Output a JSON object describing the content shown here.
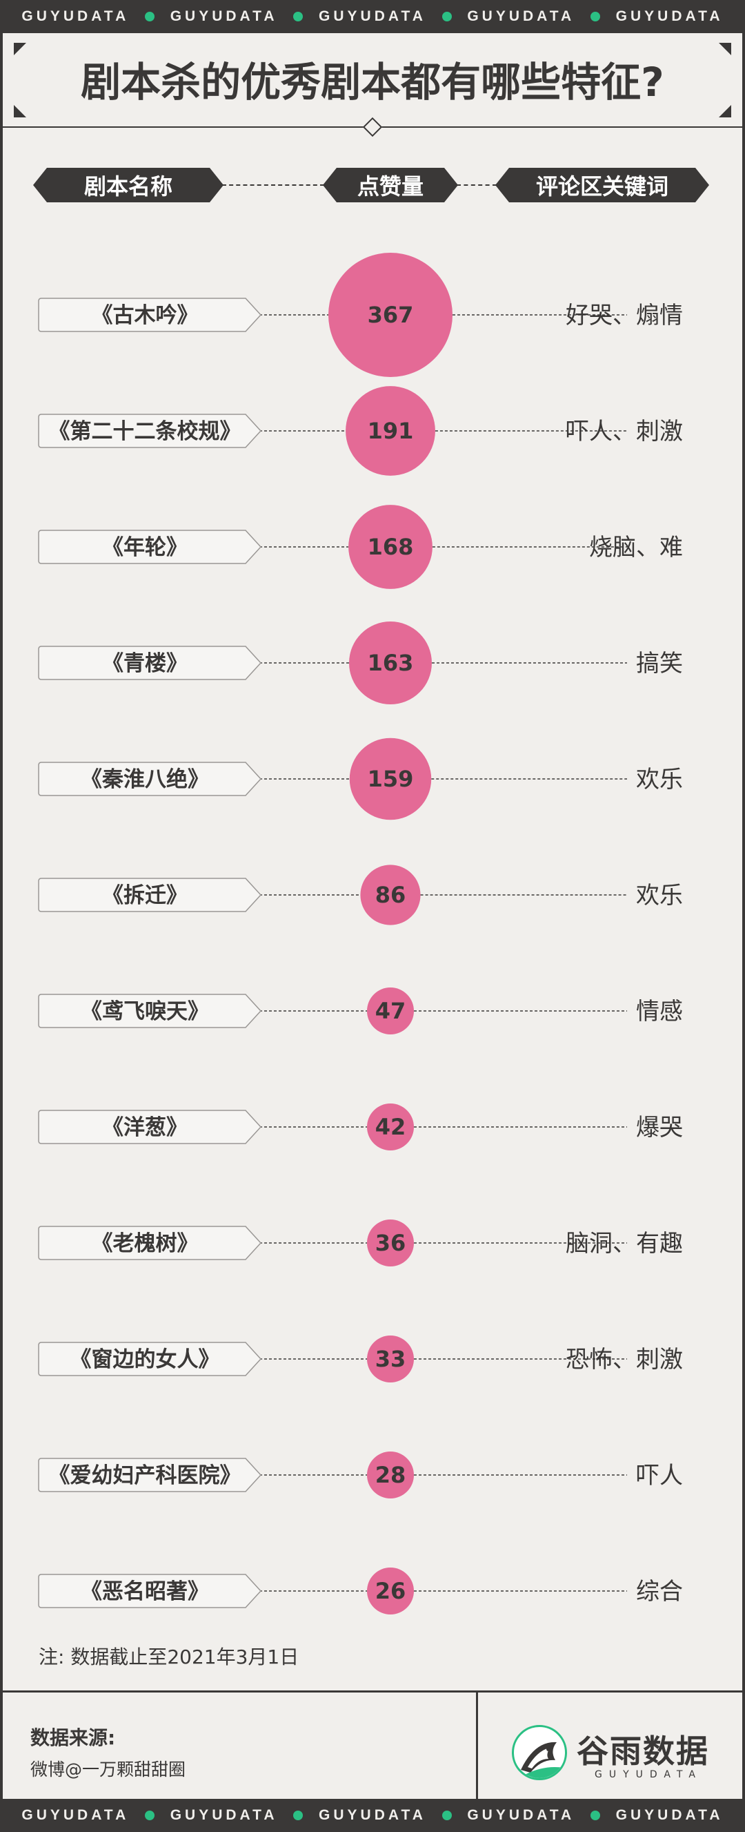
{
  "banner": {
    "word": "GUYUDATA",
    "repeat": 5
  },
  "title": "剧本杀的优秀剧本都有哪些特征?",
  "headers": {
    "name": "剧本名称",
    "likes": "点赞量",
    "keywords": "评论区关键词"
  },
  "chart_data": {
    "type": "bubble",
    "rows": [
      {
        "name": "《古木吟》",
        "likes": 367,
        "keywords": "好哭、煽情"
      },
      {
        "name": "《第二十二条校规》",
        "likes": 191,
        "keywords": "吓人、刺激"
      },
      {
        "name": "《年轮》",
        "likes": 168,
        "keywords": "烧脑、难"
      },
      {
        "name": "《青楼》",
        "likes": 163,
        "keywords": "搞笑"
      },
      {
        "name": "《秦淮八绝》",
        "likes": 159,
        "keywords": "欢乐"
      },
      {
        "name": "《拆迁》",
        "likes": 86,
        "keywords": "欢乐"
      },
      {
        "name": "《鸢飞唳天》",
        "likes": 47,
        "keywords": "情感"
      },
      {
        "name": "《洋葱》",
        "likes": 42,
        "keywords": "爆哭"
      },
      {
        "name": "《老槐树》",
        "likes": 36,
        "keywords": "脑洞、有趣"
      },
      {
        "name": "《窗边的女人》",
        "likes": 33,
        "keywords": "恐怖、刺激"
      },
      {
        "name": "《爱幼妇产科医院》",
        "likes": 28,
        "keywords": "吓人"
      },
      {
        "name": "《恶名昭著》",
        "likes": 26,
        "keywords": "综合"
      }
    ]
  },
  "note": "注: 数据截止至2021年3月1日",
  "source": {
    "label": "数据来源:",
    "value": "微博@一万颗甜甜圈"
  },
  "logo": {
    "name": "谷雨数据",
    "subtitle": "GUYUDATA"
  },
  "colors": {
    "dark": "#3a3837",
    "panel": "#f1efec",
    "bubble": "#e46a96",
    "accent": "#2bc084"
  }
}
